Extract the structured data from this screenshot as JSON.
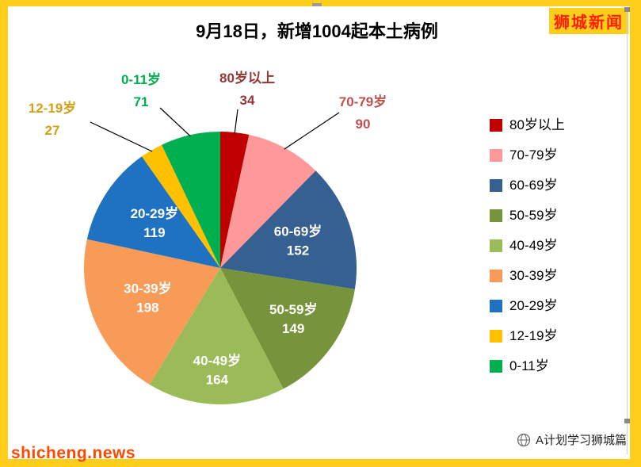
{
  "page": {
    "brand": "狮城新闻",
    "watermark": "shicheng.news",
    "footer_brand": "A计划学习狮城篇",
    "background_color": "#FFCE1B",
    "brand_color": "#FF1E00",
    "watermark_color": "#FF4800"
  },
  "chart_data": {
    "type": "pie",
    "title": "9月18日，新增1004起本土病例",
    "total": 1004,
    "legend_position": "right",
    "direction": "clockwise",
    "start_angle_deg": 0,
    "slices": [
      {
        "label": "80岁以上",
        "value": 34,
        "color": "#C00000",
        "label_color": "#943634",
        "label_placement": "outside"
      },
      {
        "label": "70-79岁",
        "value": 90,
        "color": "#FF9999",
        "label_color": "#C0504D",
        "label_placement": "outside"
      },
      {
        "label": "60-69岁",
        "value": 152,
        "color": "#376092",
        "label_color": "#FFFFFF",
        "label_placement": "inside"
      },
      {
        "label": "50-59岁",
        "value": 149,
        "color": "#77933C",
        "label_color": "#FFFFFF",
        "label_placement": "inside"
      },
      {
        "label": "40-49岁",
        "value": 164,
        "color": "#9BBB59",
        "label_color": "#FFFFFF",
        "label_placement": "inside"
      },
      {
        "label": "30-39岁",
        "value": 198,
        "color": "#F79B57",
        "label_color": "#FFFFFF",
        "label_placement": "inside"
      },
      {
        "label": "20-29岁",
        "value": 119,
        "color": "#1F72C1",
        "label_color": "#FFFFFF",
        "label_placement": "inside"
      },
      {
        "label": "12-19岁",
        "value": 27,
        "color": "#FFC000",
        "label_color": "#D4A017",
        "label_placement": "outside"
      },
      {
        "label": "0-11岁",
        "value": 71,
        "color": "#00B050",
        "label_color": "#00B050",
        "label_placement": "outside"
      }
    ]
  }
}
